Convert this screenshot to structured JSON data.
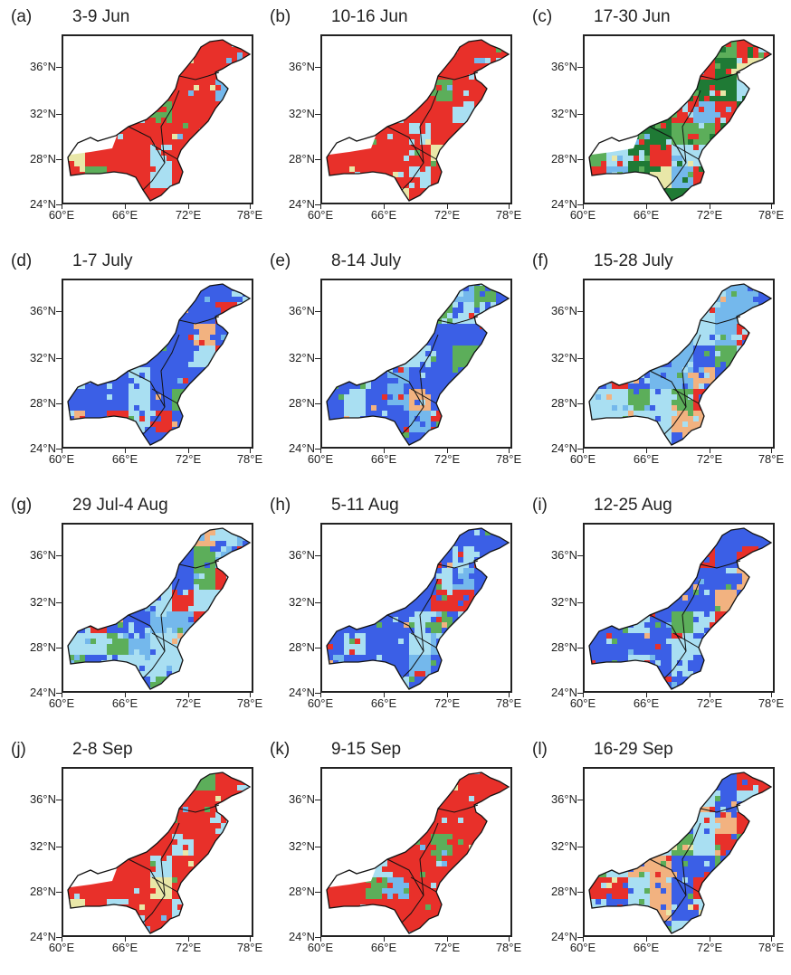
{
  "figure": {
    "panels": [
      {
        "letter": "(a)",
        "period": "3-9 Jun",
        "pattern": "red"
      },
      {
        "letter": "(b)",
        "period": "10-16 Jun",
        "pattern": "red"
      },
      {
        "letter": "(c)",
        "period": "17-30 Jun",
        "pattern": "mixed-green"
      },
      {
        "letter": "(d)",
        "period": "1-7 July",
        "pattern": "blue"
      },
      {
        "letter": "(e)",
        "period": "8-14 July",
        "pattern": "blue"
      },
      {
        "letter": "(f)",
        "period": "15-28 July",
        "pattern": "lightblue"
      },
      {
        "letter": "(g)",
        "period": "29 Jul-4 Aug",
        "pattern": "lightblue"
      },
      {
        "letter": "(h)",
        "period": "5-11 Aug",
        "pattern": "blue"
      },
      {
        "letter": "(i)",
        "period": "12-25 Aug",
        "pattern": "blue"
      },
      {
        "letter": "(j)",
        "period": "2-8 Sep",
        "pattern": "red"
      },
      {
        "letter": "(k)",
        "period": "9-15 Sep",
        "pattern": "red"
      },
      {
        "letter": "(l)",
        "period": "16-29 Sep",
        "pattern": "mixed-blue"
      }
    ],
    "lat_labels": [
      "36°N",
      "32°N",
      "28°N",
      "24°N"
    ],
    "lon_labels": [
      "60°E",
      "66°E",
      "72°E",
      "78°E"
    ],
    "colors": {
      "red": "#e8302a",
      "blue": "#3b5fe6",
      "lightblue": "#a9dff2",
      "skyblue": "#74b8ec",
      "darkgreen": "#1f7a35",
      "green": "#5cae5a",
      "paleyellow": "#e9e7a8",
      "orange": "#f2b280"
    }
  }
}
